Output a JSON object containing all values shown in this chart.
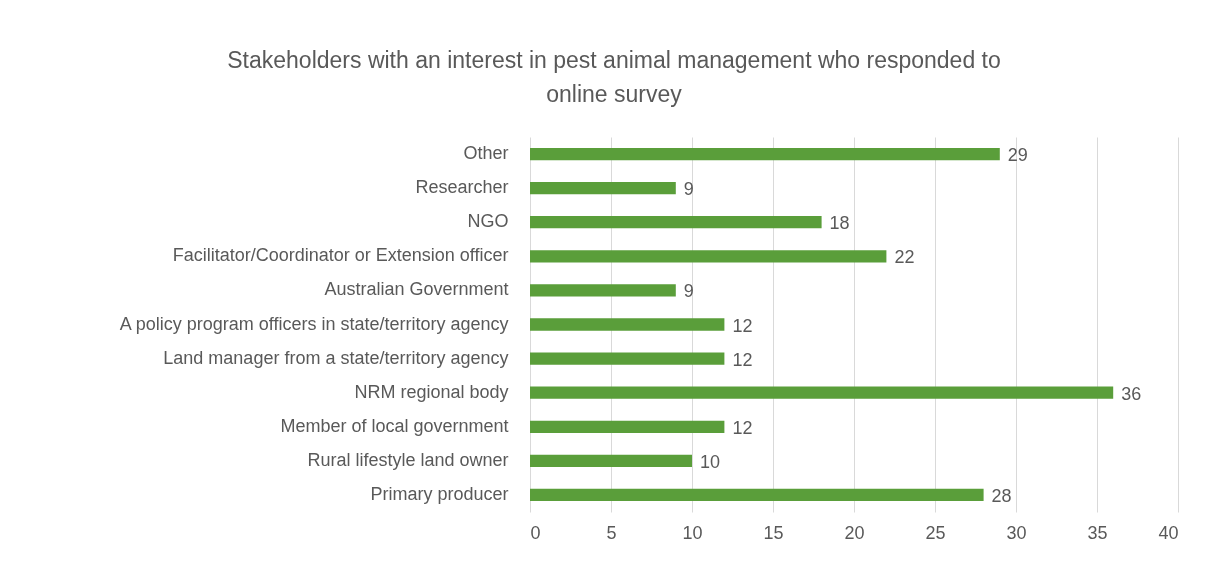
{
  "chart_data": {
    "type": "bar",
    "orientation": "horizontal",
    "title": "Stakeholders with an interest in pest animal management who responded to online survey",
    "categories": [
      "Other",
      "Researcher",
      "NGO",
      "Facilitator/Coordinator or Extension officer",
      "Australian Government",
      "A policy program officers in state/territory agency",
      "Land manager from a state/territory agency",
      "NRM regional body",
      "Member of local government",
      "Rural lifestyle land owner",
      "Primary producer"
    ],
    "values": [
      29,
      9,
      18,
      22,
      9,
      12,
      12,
      36,
      12,
      10,
      28
    ],
    "color": "#5a9e3a",
    "xlim": [
      0,
      40
    ],
    "xticks": [
      0,
      5,
      10,
      15,
      20,
      25,
      30,
      35,
      40
    ],
    "grid": "x",
    "data_labels": true
  }
}
